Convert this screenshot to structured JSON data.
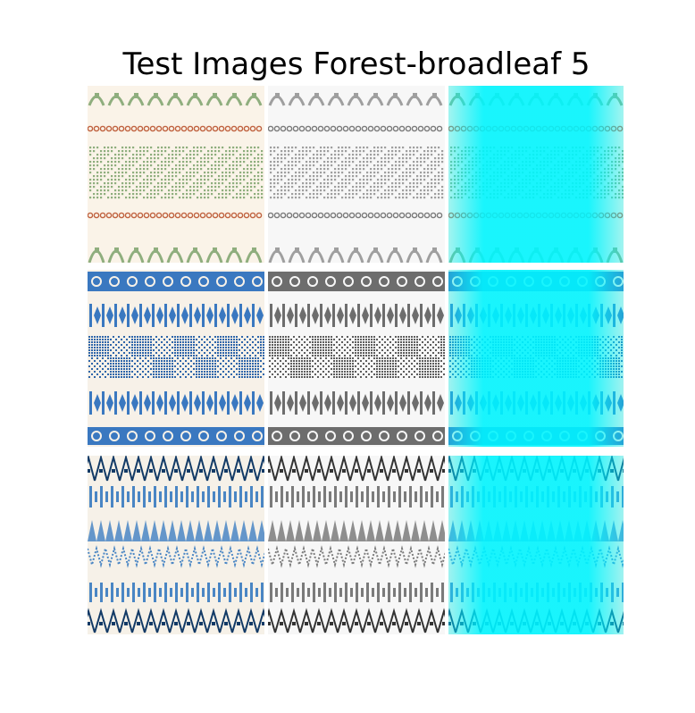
{
  "title": "Test Images Forest-broadleaf 5",
  "grid": {
    "columns": [
      "original",
      "grayscale",
      "cyan-overlay"
    ],
    "rows": [
      {
        "pattern": "medallion-ribbon",
        "bg": "#faf3e8",
        "motif": "#8fae7e",
        "band": "#c0623f"
      },
      {
        "pattern": "ikat-blue",
        "bg": "#f7f1e8",
        "motif": "#3a78c0",
        "band": "#2f66aa"
      },
      {
        "pattern": "chevron-diamond",
        "bg": "#f6f1e8",
        "motif": "#4a86c4",
        "band": "#123a66"
      }
    ],
    "overlay_color": "#00f5ff"
  }
}
